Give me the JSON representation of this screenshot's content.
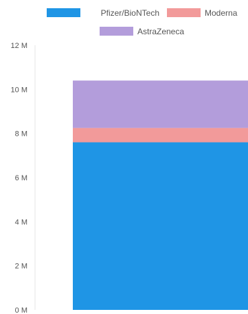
{
  "chart_data": {
    "type": "bar",
    "stacked": true,
    "categories": [
      ""
    ],
    "series": [
      {
        "name": "Pfizer/BioNTech",
        "color": "#1f95e5",
        "values": [
          7.6
        ]
      },
      {
        "name": "Moderna",
        "color": "#f29a9a",
        "values": [
          0.65
        ]
      },
      {
        "name": "AstraZeneca",
        "color": "#b39ddb",
        "values": [
          2.15
        ]
      }
    ],
    "y_ticks": [
      "0 M",
      "2 M",
      "4 M",
      "6 M",
      "8 M",
      "10 M",
      "12 M"
    ],
    "ylim": [
      0,
      12
    ],
    "legend_position": "top",
    "grid": false
  }
}
